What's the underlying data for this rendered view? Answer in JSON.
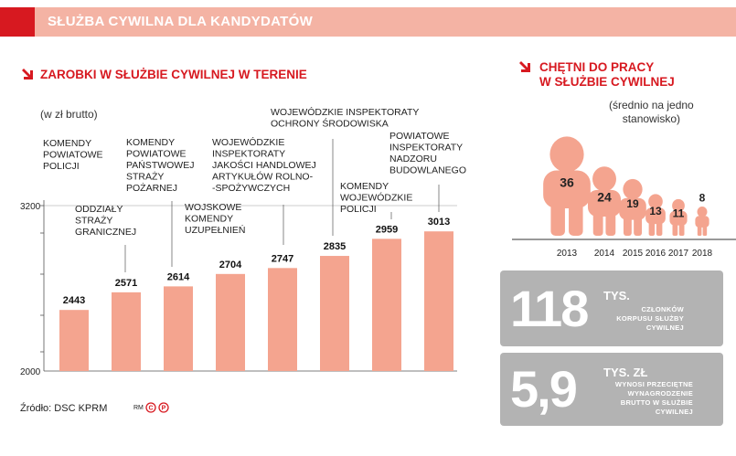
{
  "header": {
    "title": "SŁUŻBA CYWILNA DLA KANDYDATÓW"
  },
  "left_title": "ZAROBKI W SŁUŻBIE CYWILNEJ W TERENIE",
  "left_note": "(w zł brutto)",
  "source": "Źródło: DSC KPRM",
  "credit": "RM",
  "colors": {
    "accent": "#d71920",
    "bar": "#f4a48f",
    "pink_header": "#f4b3a4",
    "box_gray": "#b3b3b3"
  },
  "chart_data": [
    {
      "type": "bar",
      "categories": [
        "KOMENDY POWIATOWE POLICJI",
        "ODDZIAŁY STRAŻY GRANICZNEJ",
        "KOMENDY POWIATOWE PAŃSTWOWEJ STRAŻY POŻARNEJ",
        "WOJSKOWE KOMENDY UZUPEŁNIEŃ",
        "WOJEWÓDZKIE INSPEKTORATY JAKOŚCI HANDLOWEJ ARTYKUŁÓW ROLNO--SPOŻYWCZYCH",
        "WOJEWÓDZKIE INSPEKTORATY OCHRONY ŚRODOWISKA",
        "KOMENDY WOJEWÓDZKIE POLICJI",
        "POWIATOWE INSPEKTORATY NADZORU BUDOWLANEGO"
      ],
      "category_lines": [
        [
          "KOMENDY",
          "POWIATOWE",
          "POLICJI"
        ],
        [
          "ODDZIAŁY",
          "STRAŻY",
          "GRANICZNEJ"
        ],
        [
          "KOMENDY",
          "POWIATOWE",
          "PAŃSTWOWEJ",
          "STRAŻY",
          "POŻARNEJ"
        ],
        [
          "WOJSKOWE",
          "KOMENDY",
          "UZUPEŁNIEŃ"
        ],
        [
          "WOJEWÓDZKIE",
          "INSPEKTORATY",
          "JAKOŚCI HANDLOWEJ",
          "ARTYKUŁÓW ROLNO-",
          "-SPOŻYWCZYCH"
        ],
        [
          "WOJEWÓDZKIE INSPEKTORATY",
          "OCHRONY ŚRODOWISKA"
        ],
        [
          "KOMENDY",
          "WOJEWÓDZKIE",
          "POLICJI"
        ],
        [
          "POWIATOWE",
          "INSPEKTORATY",
          "NADZORU",
          "BUDOWLANEGO"
        ]
      ],
      "values": [
        2443,
        2571,
        2614,
        2704,
        2747,
        2835,
        2959,
        3013
      ],
      "ylim": [
        2000,
        3200
      ],
      "yticks": [
        2000,
        3200
      ],
      "title": "ZAROBKI W SŁUŻBIE CYWILNEJ W TERENIE",
      "ylabel": "(w zł brutto)"
    },
    {
      "type": "bar",
      "title": "CHĘTNI DO PRACY W SŁUŻBIE CYWILNEJ",
      "title_lines": [
        "CHĘTNI DO PRACY",
        "W SŁUŻBIE CYWILNEJ"
      ],
      "note_lines": [
        "(średnio na jedno",
        "stanowisko)"
      ],
      "categories": [
        "2013",
        "2014",
        "2015",
        "2016",
        "2017",
        "2018"
      ],
      "values": [
        36,
        24,
        19,
        13,
        11,
        8
      ]
    }
  ],
  "stats": [
    {
      "number": "118",
      "unit": "TYS.",
      "desc_lines": [
        "CZŁONKÓW",
        "KORPUSU SŁUŻBY",
        "CYWILNEJ"
      ]
    },
    {
      "number": "5,9",
      "unit": "TYS. ZŁ",
      "desc_lines": [
        "WYNOSI PRZECIĘTNE",
        "WYNAGRODZENIE",
        "BRUTTO W SŁUŻBIE",
        "CYWILNEJ"
      ]
    }
  ]
}
